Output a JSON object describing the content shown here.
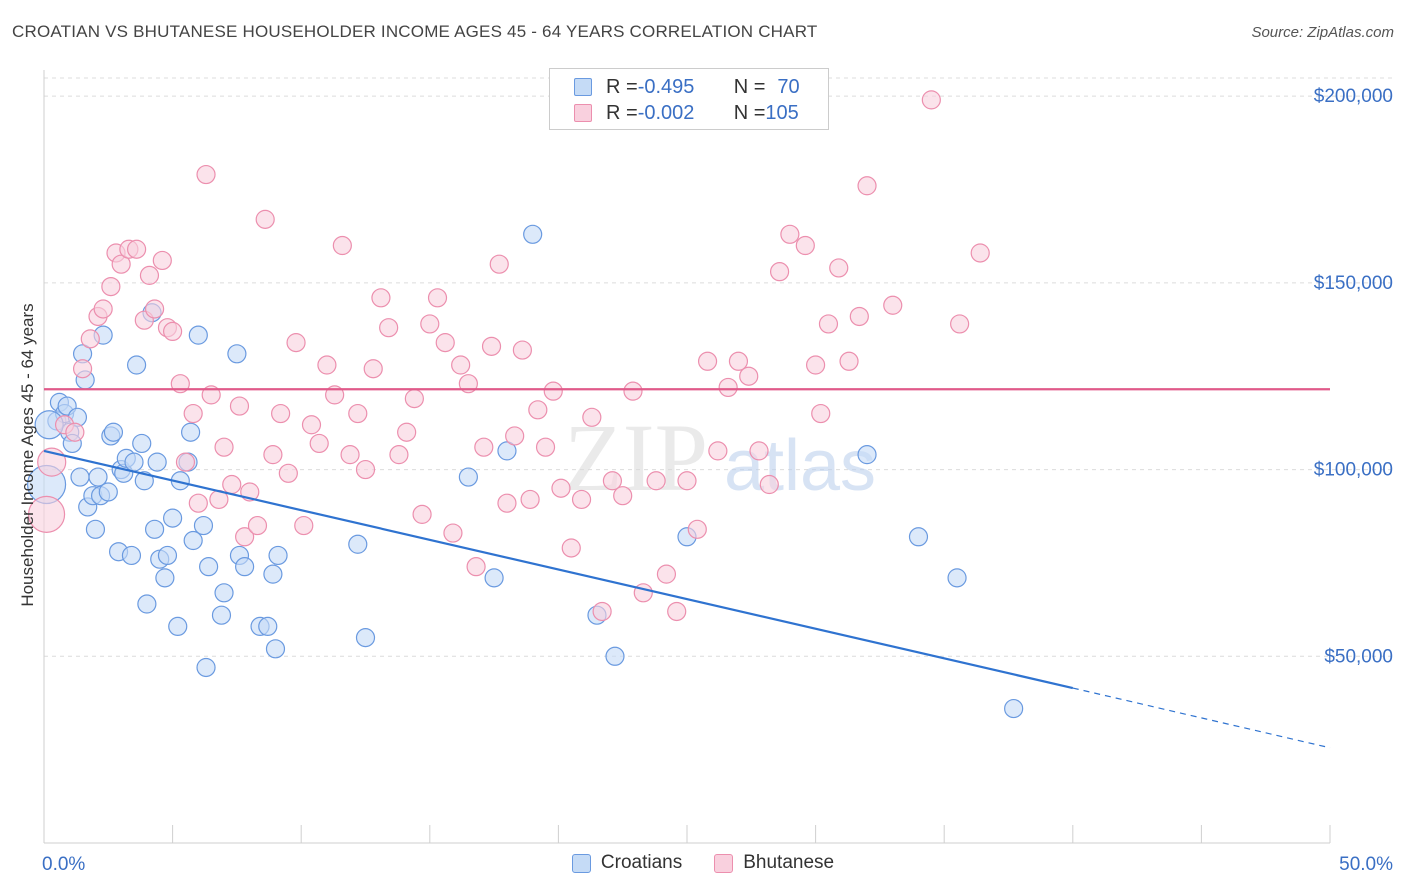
{
  "title": "CROATIAN VS BHUTANESE HOUSEHOLDER INCOME AGES 45 - 64 YEARS CORRELATION CHART",
  "source": "Source: ZipAtlas.com",
  "watermark": {
    "zip": "ZIP",
    "atlas": "atlas"
  },
  "legend": {
    "rows": [
      {
        "r_label": "R = ",
        "r_value": "-0.495",
        "n_label": "N = ",
        "n_value": "70",
        "color": "#5b8fd9"
      },
      {
        "r_label": "R = ",
        "r_value": "-0.002",
        "n_label": "N = ",
        "n_value": "105",
        "color": "#e97fa1"
      }
    ]
  },
  "bottom_legend": [
    {
      "label": "Croatians",
      "color": "#5b8fd9"
    },
    {
      "label": "Bhutanese",
      "color": "#e97fa1"
    }
  ],
  "chart_data": {
    "type": "scatter",
    "title": "CROATIAN VS BHUTANESE HOUSEHOLDER INCOME AGES 45 - 64 YEARS CORRELATION CHART",
    "ylabel": "Householder Income Ages 45 - 64 years",
    "xlim": [
      0,
      50
    ],
    "ylim": [
      0,
      207000
    ],
    "x_tick_labels": [
      {
        "value": 0,
        "label": "0.0%"
      },
      {
        "value": 50,
        "label": "50.0%"
      }
    ],
    "y_tick_labels": [
      {
        "value": 50000,
        "label": "$50,000"
      },
      {
        "value": 100000,
        "label": "$100,000"
      },
      {
        "value": 150000,
        "label": "$150,000"
      },
      {
        "value": 200000,
        "label": "$200,000"
      }
    ],
    "grid": true,
    "series": [
      {
        "name": "Croatians",
        "color": "#5b8fd9",
        "trend": {
          "x0": 0,
          "y0": 105000,
          "x1": 40,
          "y1": 41500,
          "dashed_to": 50,
          "dashed_y": 25500
        },
        "points": [
          [
            0.1,
            96000
          ],
          [
            0.5,
            113000
          ],
          [
            0.6,
            118000
          ],
          [
            0.8,
            115000
          ],
          [
            0.9,
            117000
          ],
          [
            1.0,
            110000
          ],
          [
            1.1,
            107000
          ],
          [
            1.3,
            114000
          ],
          [
            1.4,
            98000
          ],
          [
            1.5,
            131000
          ],
          [
            1.6,
            124000
          ],
          [
            1.7,
            90000
          ],
          [
            1.9,
            93000
          ],
          [
            2.0,
            84000
          ],
          [
            2.1,
            98000
          ],
          [
            2.2,
            93000
          ],
          [
            2.3,
            136000
          ],
          [
            2.5,
            94000
          ],
          [
            2.6,
            109000
          ],
          [
            2.7,
            110000
          ],
          [
            2.9,
            78000
          ],
          [
            3.0,
            100000
          ],
          [
            3.1,
            99000
          ],
          [
            3.2,
            103000
          ],
          [
            3.4,
            77000
          ],
          [
            3.5,
            102000
          ],
          [
            3.6,
            128000
          ],
          [
            3.8,
            107000
          ],
          [
            3.9,
            97000
          ],
          [
            4.0,
            64000
          ],
          [
            4.2,
            142000
          ],
          [
            4.3,
            84000
          ],
          [
            4.4,
            102000
          ],
          [
            4.5,
            76000
          ],
          [
            4.7,
            71000
          ],
          [
            4.8,
            77000
          ],
          [
            5.0,
            87000
          ],
          [
            5.2,
            58000
          ],
          [
            5.3,
            97000
          ],
          [
            5.6,
            102000
          ],
          [
            5.7,
            110000
          ],
          [
            5.8,
            81000
          ],
          [
            6.0,
            136000
          ],
          [
            6.2,
            85000
          ],
          [
            6.3,
            47000
          ],
          [
            6.4,
            74000
          ],
          [
            6.9,
            61000
          ],
          [
            7.0,
            67000
          ],
          [
            7.5,
            131000
          ],
          [
            7.6,
            77000
          ],
          [
            7.8,
            74000
          ],
          [
            8.4,
            58000
          ],
          [
            8.7,
            58000
          ],
          [
            8.9,
            72000
          ],
          [
            9.0,
            52000
          ],
          [
            9.1,
            77000
          ],
          [
            12.2,
            80000
          ],
          [
            12.5,
            55000
          ],
          [
            16.5,
            98000
          ],
          [
            17.5,
            71000
          ],
          [
            18.0,
            105000
          ],
          [
            19.0,
            163000
          ],
          [
            21.5,
            61000
          ],
          [
            22.2,
            50000
          ],
          [
            25.0,
            82000
          ],
          [
            32.0,
            104000
          ],
          [
            34.0,
            82000
          ],
          [
            35.5,
            71000
          ],
          [
            37.7,
            36000
          ],
          [
            0.2,
            112000
          ]
        ]
      },
      {
        "name": "Bhutanese",
        "color": "#e97fa1",
        "trend": {
          "x0": 0,
          "y0": 121500,
          "x1": 50,
          "y1": 121500
        },
        "points": [
          [
            0.1,
            88000
          ],
          [
            0.3,
            102000
          ],
          [
            0.8,
            112000
          ],
          [
            1.2,
            110000
          ],
          [
            1.5,
            127000
          ],
          [
            1.8,
            135000
          ],
          [
            2.1,
            141000
          ],
          [
            2.3,
            143000
          ],
          [
            2.6,
            149000
          ],
          [
            2.8,
            158000
          ],
          [
            3.0,
            155000
          ],
          [
            3.3,
            159000
          ],
          [
            3.6,
            159000
          ],
          [
            3.9,
            140000
          ],
          [
            4.1,
            152000
          ],
          [
            4.3,
            143000
          ],
          [
            4.6,
            156000
          ],
          [
            4.8,
            138000
          ],
          [
            5.0,
            137000
          ],
          [
            5.3,
            123000
          ],
          [
            5.5,
            102000
          ],
          [
            5.8,
            115000
          ],
          [
            6.0,
            91000
          ],
          [
            6.3,
            179000
          ],
          [
            6.5,
            120000
          ],
          [
            6.8,
            92000
          ],
          [
            7.0,
            106000
          ],
          [
            7.3,
            96000
          ],
          [
            7.6,
            117000
          ],
          [
            7.8,
            82000
          ],
          [
            8.0,
            94000
          ],
          [
            8.3,
            85000
          ],
          [
            8.6,
            167000
          ],
          [
            8.9,
            104000
          ],
          [
            9.2,
            115000
          ],
          [
            9.5,
            99000
          ],
          [
            9.8,
            134000
          ],
          [
            10.1,
            85000
          ],
          [
            10.4,
            112000
          ],
          [
            10.7,
            107000
          ],
          [
            11.0,
            128000
          ],
          [
            11.3,
            120000
          ],
          [
            11.6,
            160000
          ],
          [
            11.9,
            104000
          ],
          [
            12.2,
            115000
          ],
          [
            12.5,
            100000
          ],
          [
            12.8,
            127000
          ],
          [
            13.1,
            146000
          ],
          [
            13.4,
            138000
          ],
          [
            13.8,
            104000
          ],
          [
            14.1,
            110000
          ],
          [
            14.4,
            119000
          ],
          [
            14.7,
            88000
          ],
          [
            15.0,
            139000
          ],
          [
            15.3,
            146000
          ],
          [
            15.6,
            134000
          ],
          [
            15.9,
            83000
          ],
          [
            16.2,
            128000
          ],
          [
            16.5,
            123000
          ],
          [
            16.8,
            74000
          ],
          [
            17.1,
            106000
          ],
          [
            17.4,
            133000
          ],
          [
            17.7,
            155000
          ],
          [
            18.0,
            91000
          ],
          [
            18.3,
            109000
          ],
          [
            18.6,
            132000
          ],
          [
            18.9,
            92000
          ],
          [
            19.2,
            116000
          ],
          [
            19.5,
            106000
          ],
          [
            19.8,
            121000
          ],
          [
            20.1,
            95000
          ],
          [
            20.5,
            79000
          ],
          [
            20.9,
            92000
          ],
          [
            21.3,
            114000
          ],
          [
            21.7,
            62000
          ],
          [
            22.1,
            97000
          ],
          [
            22.5,
            93000
          ],
          [
            22.9,
            121000
          ],
          [
            23.3,
            67000
          ],
          [
            23.8,
            97000
          ],
          [
            24.2,
            72000
          ],
          [
            24.6,
            62000
          ],
          [
            25.0,
            97000
          ],
          [
            25.4,
            84000
          ],
          [
            25.8,
            129000
          ],
          [
            26.2,
            105000
          ],
          [
            26.6,
            122000
          ],
          [
            27.0,
            129000
          ],
          [
            27.4,
            125000
          ],
          [
            27.8,
            105000
          ],
          [
            28.2,
            96000
          ],
          [
            28.6,
            153000
          ],
          [
            29.0,
            163000
          ],
          [
            29.6,
            160000
          ],
          [
            30.0,
            128000
          ],
          [
            30.2,
            115000
          ],
          [
            30.5,
            139000
          ],
          [
            30.9,
            154000
          ],
          [
            31.3,
            129000
          ],
          [
            31.7,
            141000
          ],
          [
            32.0,
            176000
          ],
          [
            33.0,
            144000
          ],
          [
            34.5,
            199000
          ],
          [
            35.6,
            139000
          ],
          [
            36.4,
            158000
          ]
        ]
      }
    ]
  }
}
